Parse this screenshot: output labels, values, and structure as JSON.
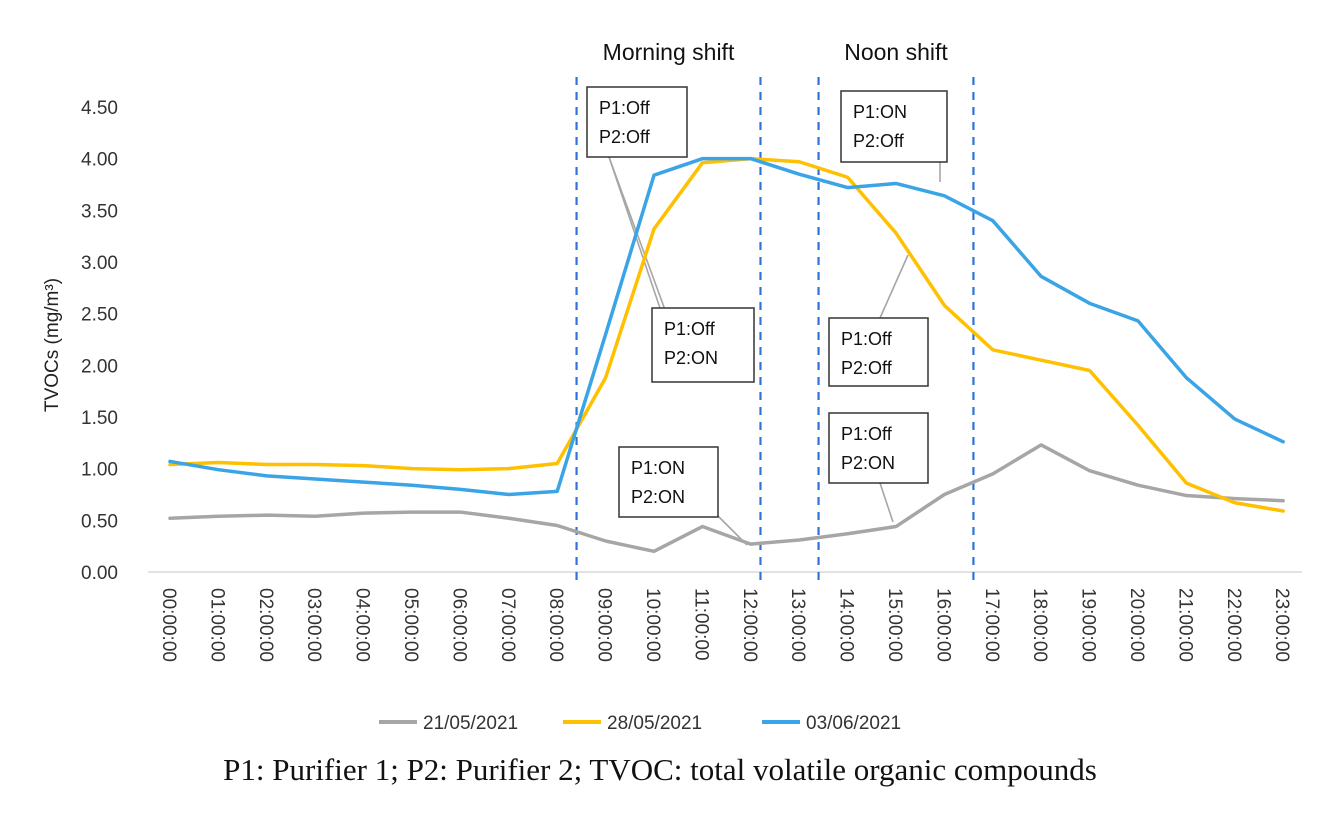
{
  "chart_data": {
    "type": "line",
    "ylabel": "TVOCs (mg/m³)",
    "ylim": [
      0,
      4.5
    ],
    "yticks": [
      "0.00",
      "0.50",
      "1.00",
      "1.50",
      "2.00",
      "2.50",
      "3.00",
      "3.50",
      "4.00",
      "4.50"
    ],
    "categories": [
      "00:00:00",
      "01:00:00",
      "02:00:00",
      "03:00:00",
      "04:00:00",
      "05:00:00",
      "06:00:00",
      "07:00:00",
      "08:00:00",
      "09:00:00",
      "10:00:00",
      "11:00:00",
      "12:00:00",
      "13:00:00",
      "14:00:00",
      "15:00:00",
      "16:00:00",
      "17:00:00",
      "18:00:00",
      "19:00:00",
      "20:00:00",
      "21:00:00",
      "22:00:00",
      "23:00:00"
    ],
    "series": [
      {
        "name": "21/05/2021",
        "color": "#a6a6a6",
        "values": [
          0.52,
          0.54,
          0.55,
          0.54,
          0.57,
          0.58,
          0.58,
          0.52,
          0.45,
          0.3,
          0.2,
          0.44,
          0.27,
          0.31,
          0.37,
          0.44,
          0.75,
          0.95,
          1.23,
          0.98,
          0.84,
          0.74,
          0.71,
          0.69
        ]
      },
      {
        "name": "28/05/2021",
        "color": "#ffc000",
        "values": [
          1.04,
          1.06,
          1.04,
          1.04,
          1.03,
          1.0,
          0.99,
          1.0,
          1.05,
          1.88,
          3.32,
          3.96,
          4.0,
          3.97,
          3.82,
          3.28,
          2.58,
          2.15,
          2.05,
          1.95,
          1.42,
          0.86,
          0.67,
          0.59
        ]
      },
      {
        "name": "03/06/2021",
        "color": "#3ba4e6",
        "values": [
          1.07,
          0.99,
          0.93,
          0.9,
          0.87,
          0.84,
          0.8,
          0.75,
          0.78,
          2.3,
          3.84,
          4.0,
          4.0,
          3.85,
          3.72,
          3.76,
          3.64,
          3.4,
          2.86,
          2.6,
          2.43,
          1.88,
          1.48,
          1.26
        ]
      }
    ],
    "shifts": [
      {
        "label": "Morning shift",
        "start": 8.4,
        "end": 12.2
      },
      {
        "label": "Noon shift",
        "start": 13.4,
        "end": 16.6
      }
    ],
    "annotations": [
      {
        "line1": "P1:Off",
        "line2": "P2:Off"
      },
      {
        "line1": "P1:Off",
        "line2": "P2:ON"
      },
      {
        "line1": "P1:ON",
        "line2": "P2:ON"
      },
      {
        "line1": "P1:ON",
        "line2": "P2:Off"
      },
      {
        "line1": "P1:Off",
        "line2": "P2:Off"
      },
      {
        "line1": "P1:Off",
        "line2": "P2:ON"
      }
    ],
    "caption": "P1: Purifier 1; P2: Purifier 2; TVOC: total volatile organic compounds"
  }
}
